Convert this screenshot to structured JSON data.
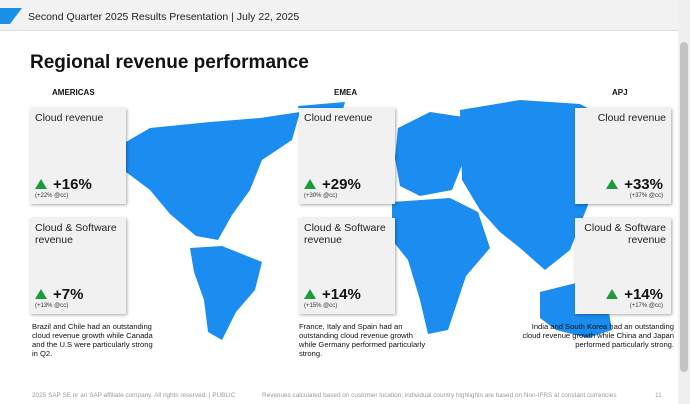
{
  "header": {
    "title": "Second Quarter 2025 Results Presentation | July 22, 2025"
  },
  "title": "Regional revenue performance",
  "regions": [
    {
      "name": "AMERICAS",
      "cards": [
        {
          "label": "Cloud revenue",
          "growth": "+16%",
          "cc": "(+22% @cc)"
        },
        {
          "label": "Cloud & Software revenue",
          "growth": "+7%",
          "cc": "(+13% @cc)"
        }
      ],
      "note": "Brazil and Chile had an outstanding  cloud revenue growth while Canada and the U.S were particularly strong in Q2."
    },
    {
      "name": "EMEA",
      "cards": [
        {
          "label": "Cloud revenue",
          "growth": "+29%",
          "cc": "(+30% @cc)"
        },
        {
          "label": "Cloud & Software revenue",
          "growth": "+14%",
          "cc": "(+15% @cc)"
        }
      ],
      "note": "France, Italy and Spain had an outstanding cloud revenue growth while Germany performed particularly strong."
    },
    {
      "name": "APJ",
      "cards": [
        {
          "label": "Cloud revenue",
          "growth": "+33%",
          "cc": "(+37% @cc)"
        },
        {
          "label": "Cloud & Software revenue",
          "growth": "+14%",
          "cc": "(+17% @cc)"
        }
      ],
      "note": "India and South Korea had an outstanding cloud revenue growth while China and Japan performed particularly strong."
    }
  ],
  "footer": {
    "copyright": "2025 SAP SE or an SAP affiliate company. All rights reserved.  |  PUBLIC",
    "disclaimer": "Revenues calculated based on customer location; individual country highlights are based on Non-IFRS at constant currencies",
    "page": "11"
  }
}
